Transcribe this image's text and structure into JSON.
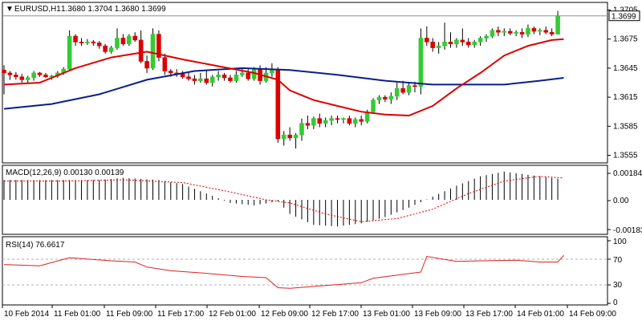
{
  "price_panel": {
    "menu_glyph": "▼",
    "symbol": "EURUSD,H1",
    "ohlc": "1.3680 1.3704 1.3680 1.3699",
    "last_price_label": "1.3699",
    "y_ticks": [
      "1.3705",
      "1.3675",
      "1.3645",
      "1.3615",
      "1.3585",
      "1.3555"
    ],
    "y_tick_values": [
      1.3705,
      1.3675,
      1.3645,
      1.3615,
      1.3585,
      1.3555
    ]
  },
  "macd_panel": {
    "title": "MACD(12,26,9) 0.00130 0.00139",
    "y_ticks": [
      "0.00184",
      "0.00",
      "-0.00183"
    ]
  },
  "rsi_panel": {
    "title": "RSI(14) 76.6617",
    "y_ticks": [
      "100",
      "70",
      "30",
      "0"
    ]
  },
  "x_axis": {
    "labels": [
      "10 Feb 2014",
      "11 Feb 01:00",
      "11 Feb 09:00",
      "11 Feb 17:00",
      "12 Feb 01:00",
      "12 Feb 09:00",
      "12 Feb 17:00",
      "13 Feb 01:00",
      "13 Feb 09:00",
      "13 Feb 17:00",
      "14 Feb 01:00",
      "14 Feb 09:00"
    ]
  },
  "colors": {
    "up_candle": "#33cc33",
    "down_candle": "#dd0000",
    "fast_ma": "#dd0000",
    "slow_ma": "#0a1e8c",
    "rsi_line": "#dd2222",
    "macd_signal": "#dd0000",
    "macd_hist": "#000000"
  },
  "chart_data": {
    "type": "candlestick",
    "ohlc": [
      [
        1.3643,
        1.3648,
        1.3618,
        1.364
      ],
      [
        1.364,
        1.3642,
        1.3633,
        1.3638
      ],
      [
        1.3638,
        1.3641,
        1.3633,
        1.3636
      ],
      [
        1.3636,
        1.3639,
        1.363,
        1.3633
      ],
      [
        1.3633,
        1.3637,
        1.363,
        1.3635
      ],
      [
        1.3635,
        1.3642,
        1.3632,
        1.364
      ],
      [
        1.364,
        1.3641,
        1.3636,
        1.3638
      ],
      [
        1.3638,
        1.364,
        1.3635,
        1.3636
      ],
      [
        1.3636,
        1.3638,
        1.3633,
        1.3637
      ],
      [
        1.3637,
        1.3642,
        1.3635,
        1.364
      ],
      [
        1.364,
        1.3646,
        1.3638,
        1.3644
      ],
      [
        1.3644,
        1.3684,
        1.3642,
        1.3678
      ],
      [
        1.3678,
        1.368,
        1.3668,
        1.3672
      ],
      [
        1.3672,
        1.3676,
        1.3668,
        1.3671
      ],
      [
        1.3671,
        1.3675,
        1.3669,
        1.3672
      ],
      [
        1.3672,
        1.3674,
        1.3668,
        1.3671
      ],
      [
        1.3671,
        1.3673,
        1.3665,
        1.3668
      ],
      [
        1.3668,
        1.367,
        1.366,
        1.3662
      ],
      [
        1.3662,
        1.3668,
        1.366,
        1.3666
      ],
      [
        1.3666,
        1.3686,
        1.3664,
        1.3676
      ],
      [
        1.3676,
        1.368,
        1.3668,
        1.367
      ],
      [
        1.367,
        1.368,
        1.3668,
        1.3678
      ],
      [
        1.3678,
        1.3682,
        1.3672,
        1.3674
      ],
      [
        1.3674,
        1.3684,
        1.365,
        1.3652
      ],
      [
        1.3652,
        1.3658,
        1.364,
        1.3645
      ],
      [
        1.3645,
        1.3686,
        1.3643,
        1.368
      ],
      [
        1.368,
        1.3684,
        1.3652,
        1.3656
      ],
      [
        1.3656,
        1.366,
        1.3638,
        1.3642
      ],
      [
        1.3642,
        1.3644,
        1.3636,
        1.364
      ],
      [
        1.364,
        1.3644,
        1.3636,
        1.3639
      ],
      [
        1.3639,
        1.3642,
        1.3634,
        1.3636
      ],
      [
        1.3636,
        1.364,
        1.3632,
        1.3634
      ],
      [
        1.3634,
        1.3638,
        1.3628,
        1.3632
      ],
      [
        1.3632,
        1.364,
        1.363,
        1.3634
      ],
      [
        1.3634,
        1.3642,
        1.3628,
        1.363
      ],
      [
        1.363,
        1.3638,
        1.3626,
        1.3636
      ],
      [
        1.3636,
        1.3642,
        1.3632,
        1.3638
      ],
      [
        1.3638,
        1.364,
        1.3632,
        1.3635
      ],
      [
        1.3635,
        1.3638,
        1.363,
        1.3632
      ],
      [
        1.3632,
        1.3642,
        1.363,
        1.3638
      ],
      [
        1.3638,
        1.3644,
        1.3636,
        1.364
      ],
      [
        1.364,
        1.3644,
        1.3632,
        1.3634
      ],
      [
        1.3634,
        1.3646,
        1.3632,
        1.3644
      ],
      [
        1.3644,
        1.3648,
        1.3628,
        1.3632
      ],
      [
        1.3632,
        1.3646,
        1.363,
        1.364
      ],
      [
        1.364,
        1.365,
        1.3636,
        1.3643
      ],
      [
        1.3643,
        1.3646,
        1.3568,
        1.3572
      ],
      [
        1.3572,
        1.358,
        1.3565,
        1.3576
      ],
      [
        1.3576,
        1.3584,
        1.357,
        1.3573
      ],
      [
        1.3573,
        1.3578,
        1.3562,
        1.3576
      ],
      [
        1.3576,
        1.3593,
        1.357,
        1.3588
      ],
      [
        1.3588,
        1.3596,
        1.3582,
        1.3586
      ],
      [
        1.3586,
        1.3595,
        1.3582,
        1.3593
      ],
      [
        1.3593,
        1.3598,
        1.3584,
        1.3588
      ],
      [
        1.3588,
        1.3594,
        1.3584,
        1.3591
      ],
      [
        1.3591,
        1.3596,
        1.3586,
        1.3593
      ],
      [
        1.3593,
        1.3596,
        1.3588,
        1.3592
      ],
      [
        1.3592,
        1.3594,
        1.3588,
        1.3593
      ],
      [
        1.3593,
        1.3596,
        1.3586,
        1.3588
      ],
      [
        1.3588,
        1.3594,
        1.3584,
        1.3592
      ],
      [
        1.3592,
        1.3596,
        1.3586,
        1.359
      ],
      [
        1.359,
        1.3602,
        1.3588,
        1.36
      ],
      [
        1.36,
        1.3614,
        1.3598,
        1.3612
      ],
      [
        1.3612,
        1.3617,
        1.3608,
        1.3615
      ],
      [
        1.3615,
        1.3617,
        1.361,
        1.3613
      ],
      [
        1.3613,
        1.362,
        1.3608,
        1.3616
      ],
      [
        1.3616,
        1.363,
        1.3612,
        1.3624
      ],
      [
        1.3624,
        1.3632,
        1.3618,
        1.362
      ],
      [
        1.362,
        1.363,
        1.3617,
        1.3627
      ],
      [
        1.3627,
        1.3631,
        1.362,
        1.3626
      ],
      [
        1.3626,
        1.3686,
        1.3618,
        1.3676
      ],
      [
        1.3676,
        1.3688,
        1.3668,
        1.3672
      ],
      [
        1.3672,
        1.3676,
        1.3662,
        1.3666
      ],
      [
        1.3666,
        1.3672,
        1.366,
        1.3668
      ],
      [
        1.3668,
        1.3692,
        1.3664,
        1.3672
      ],
      [
        1.3672,
        1.3682,
        1.3666,
        1.367
      ],
      [
        1.367,
        1.3676,
        1.3666,
        1.3674
      ],
      [
        1.3674,
        1.3686,
        1.3668,
        1.3672
      ],
      [
        1.3672,
        1.3676,
        1.3666,
        1.3669
      ],
      [
        1.3669,
        1.3674,
        1.3666,
        1.3672
      ],
      [
        1.3672,
        1.3678,
        1.3668,
        1.3676
      ],
      [
        1.3676,
        1.368,
        1.3672,
        1.3678
      ],
      [
        1.3678,
        1.3686,
        1.3676,
        1.3684
      ],
      [
        1.3684,
        1.3688,
        1.3678,
        1.3682
      ],
      [
        1.3682,
        1.3686,
        1.3678,
        1.3683
      ],
      [
        1.3683,
        1.3686,
        1.3679,
        1.3681
      ],
      [
        1.3681,
        1.3684,
        1.3678,
        1.3682
      ],
      [
        1.3682,
        1.3686,
        1.3676,
        1.368
      ],
      [
        1.368,
        1.369,
        1.3677,
        1.3686
      ],
      [
        1.3686,
        1.3688,
        1.368,
        1.3683
      ],
      [
        1.3683,
        1.3686,
        1.3679,
        1.3684
      ],
      [
        1.3684,
        1.3688,
        1.368,
        1.3682
      ],
      [
        1.3682,
        1.3686,
        1.3678,
        1.368
      ],
      [
        1.368,
        1.3704,
        1.368,
        1.3699
      ]
    ],
    "fast_ma": [
      [
        0,
        1.3628
      ],
      [
        6,
        1.363
      ],
      [
        12,
        1.3645
      ],
      [
        18,
        1.3656
      ],
      [
        24,
        1.3662
      ],
      [
        30,
        1.3654
      ],
      [
        36,
        1.3647
      ],
      [
        42,
        1.364
      ],
      [
        46,
        1.3633
      ],
      [
        48,
        1.3622
      ],
      [
        52,
        1.3612
      ],
      [
        56,
        1.3606
      ],
      [
        60,
        1.36
      ],
      [
        64,
        1.3597
      ],
      [
        68,
        1.3596
      ],
      [
        72,
        1.3606
      ],
      [
        76,
        1.3624
      ],
      [
        80,
        1.364
      ],
      [
        84,
        1.3658
      ],
      [
        88,
        1.3668
      ],
      [
        92,
        1.3674
      ],
      [
        94,
        1.3675
      ]
    ],
    "slow_ma": [
      [
        0,
        1.3603
      ],
      [
        8,
        1.3608
      ],
      [
        16,
        1.3618
      ],
      [
        24,
        1.3633
      ],
      [
        32,
        1.3642
      ],
      [
        40,
        1.3645
      ],
      [
        48,
        1.3643
      ],
      [
        56,
        1.3638
      ],
      [
        64,
        1.3632
      ],
      [
        68,
        1.363
      ],
      [
        72,
        1.3628
      ],
      [
        78,
        1.3628
      ],
      [
        84,
        1.3628
      ],
      [
        90,
        1.3632
      ],
      [
        94,
        1.3635
      ]
    ],
    "macd_hist": [
      [
        0,
        0.00126
      ],
      [
        8,
        0.00126
      ],
      [
        16,
        0.00126
      ],
      [
        20,
        0.0014
      ],
      [
        26,
        0.00126
      ],
      [
        30,
        0.001
      ],
      [
        34,
        0.0004
      ],
      [
        38,
        -0.0002
      ],
      [
        42,
        -0.00035
      ],
      [
        46,
        -0.0001
      ],
      [
        48,
        -0.0009
      ],
      [
        52,
        -0.0016
      ],
      [
        56,
        -0.0017
      ],
      [
        60,
        -0.0015
      ],
      [
        64,
        -0.0011
      ],
      [
        68,
        -0.0005
      ],
      [
        72,
        0.0002
      ],
      [
        76,
        0.0009
      ],
      [
        80,
        0.0015
      ],
      [
        84,
        0.0018
      ],
      [
        88,
        0.0016
      ],
      [
        92,
        0.0014
      ],
      [
        94,
        0.0013
      ]
    ],
    "macd_signal": [
      [
        0,
        0.0012
      ],
      [
        10,
        0.0012
      ],
      [
        20,
        0.00128
      ],
      [
        30,
        0.0011
      ],
      [
        38,
        0.0005
      ],
      [
        44,
        0.0
      ],
      [
        48,
        -0.0002
      ],
      [
        54,
        -0.0009
      ],
      [
        60,
        -0.0014
      ],
      [
        66,
        -0.0012
      ],
      [
        72,
        -0.0006
      ],
      [
        78,
        0.0004
      ],
      [
        84,
        0.0012
      ],
      [
        90,
        0.0015
      ],
      [
        94,
        0.00139
      ]
    ],
    "rsi": [
      [
        0,
        62
      ],
      [
        6,
        60
      ],
      [
        11,
        73
      ],
      [
        18,
        68
      ],
      [
        22,
        66
      ],
      [
        24,
        58
      ],
      [
        28,
        52
      ],
      [
        34,
        48
      ],
      [
        40,
        43
      ],
      [
        44,
        41
      ],
      [
        46,
        25
      ],
      [
        48,
        24
      ],
      [
        52,
        27
      ],
      [
        56,
        30
      ],
      [
        60,
        33
      ],
      [
        62,
        40
      ],
      [
        66,
        45
      ],
      [
        70,
        50
      ],
      [
        71,
        75
      ],
      [
        76,
        67
      ],
      [
        80,
        68
      ],
      [
        86,
        69
      ],
      [
        90,
        66
      ],
      [
        93,
        66
      ],
      [
        94,
        76.66
      ]
    ],
    "y_range_price": [
      1.3548,
      1.3712
    ],
    "y_range_macd": [
      -0.00215,
      0.00215
    ],
    "y_range_rsi": [
      0,
      100
    ]
  }
}
